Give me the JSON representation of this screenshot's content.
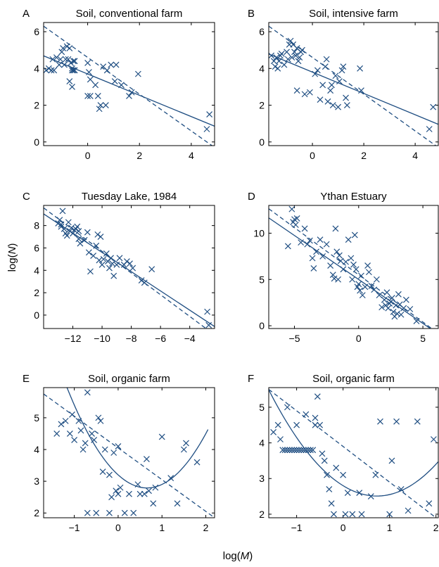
{
  "figure": {
    "xlabel_prefix": "log(",
    "xlabel_var": "M",
    "xlabel_suffix": ")",
    "ylabel_prefix": "log(",
    "ylabel_var": "N",
    "ylabel_suffix": ")",
    "series_color": "#1f4e82"
  },
  "chart_data": [
    {
      "type": "scatter",
      "letter": "A",
      "title": "Soil, conventional farm",
      "xlim": [
        -1.7,
        4.9
      ],
      "ylim": [
        -0.2,
        6.5
      ],
      "xticks": [
        0,
        2,
        4
      ],
      "xtick_labels": [
        "0",
        "2",
        "4"
      ],
      "yticks": [
        0,
        2,
        4,
        6
      ],
      "ytick_labels": [
        "0",
        "2",
        "4",
        "6"
      ],
      "fit_solid": {
        "kind": "linear",
        "slope": -0.58,
        "intercept": 3.7
      },
      "fit_dashed": {
        "kind": "linear",
        "slope": -1.0,
        "intercept": 4.6
      },
      "points": [
        [
          -1.6,
          3.9
        ],
        [
          -1.5,
          4.0
        ],
        [
          -1.4,
          3.9
        ],
        [
          -1.35,
          4.5
        ],
        [
          -1.3,
          3.9
        ],
        [
          -1.2,
          4.6
        ],
        [
          -1.1,
          4.2
        ],
        [
          -1.05,
          4.5
        ],
        [
          -1.0,
          4.9
        ],
        [
          -0.95,
          5.1
        ],
        [
          -0.9,
          4.2
        ],
        [
          -0.85,
          4.5
        ],
        [
          -0.8,
          5.2
        ],
        [
          -0.75,
          4.5
        ],
        [
          -0.7,
          5.1
        ],
        [
          -0.65,
          4.3
        ],
        [
          -0.6,
          4.0
        ],
        [
          -0.6,
          3.9
        ],
        [
          -0.55,
          3.9
        ],
        [
          -0.55,
          4.4
        ],
        [
          -0.5,
          4.4
        ],
        [
          -0.5,
          3.9
        ],
        [
          -0.7,
          3.3
        ],
        [
          -0.6,
          3.0
        ],
        [
          0.0,
          4.3
        ],
        [
          0.05,
          3.8
        ],
        [
          0.0,
          2.5
        ],
        [
          0.1,
          2.5
        ],
        [
          0.1,
          3.4
        ],
        [
          0.3,
          3.1
        ],
        [
          0.4,
          2.5
        ],
        [
          0.5,
          2.0
        ],
        [
          0.45,
          1.8
        ],
        [
          0.6,
          4.1
        ],
        [
          0.7,
          2.0
        ],
        [
          0.75,
          3.9
        ],
        [
          0.9,
          4.2
        ],
        [
          1.05,
          3.3
        ],
        [
          1.1,
          4.2
        ],
        [
          1.3,
          3.1
        ],
        [
          1.6,
          2.5
        ],
        [
          1.7,
          2.7
        ],
        [
          1.95,
          3.7
        ],
        [
          4.7,
          1.5
        ],
        [
          4.6,
          0.7
        ]
      ]
    },
    {
      "type": "scatter",
      "letter": "B",
      "title": "Soil, intensive farm",
      "xlim": [
        -1.7,
        4.9
      ],
      "ylim": [
        -0.2,
        6.5
      ],
      "xticks": [
        0,
        2,
        4
      ],
      "xtick_labels": [
        "0",
        "2",
        "4"
      ],
      "yticks": [
        0,
        2,
        4,
        6
      ],
      "ytick_labels": [
        "0",
        "2",
        "4",
        "6"
      ],
      "fit_solid": {
        "kind": "linear",
        "slope": -0.58,
        "intercept": 3.8
      },
      "fit_dashed": {
        "kind": "linear",
        "slope": -1.0,
        "intercept": 4.6
      },
      "points": [
        [
          -1.6,
          4.7
        ],
        [
          -1.5,
          4.4
        ],
        [
          -1.45,
          4.1
        ],
        [
          -1.4,
          4.6
        ],
        [
          -1.35,
          4.0
        ],
        [
          -1.3,
          4.4
        ],
        [
          -1.25,
          4.7
        ],
        [
          -1.2,
          4.8
        ],
        [
          -1.1,
          4.2
        ],
        [
          -1.0,
          4.9
        ],
        [
          -0.95,
          4.5
        ],
        [
          -0.9,
          5.3
        ],
        [
          -0.85,
          5.5
        ],
        [
          -0.8,
          4.6
        ],
        [
          -0.75,
          5.3
        ],
        [
          -0.7,
          4.9
        ],
        [
          -0.65,
          4.7
        ],
        [
          -0.6,
          5.1
        ],
        [
          -0.55,
          4.4
        ],
        [
          -0.5,
          4.6
        ],
        [
          -0.45,
          4.9
        ],
        [
          -0.4,
          5.0
        ],
        [
          -0.6,
          2.8
        ],
        [
          -0.3,
          2.6
        ],
        [
          -0.1,
          2.7
        ],
        [
          0.1,
          3.7
        ],
        [
          0.2,
          3.9
        ],
        [
          0.3,
          2.3
        ],
        [
          0.4,
          3.1
        ],
        [
          0.5,
          4.1
        ],
        [
          0.55,
          4.5
        ],
        [
          0.6,
          2.2
        ],
        [
          0.7,
          2.8
        ],
        [
          0.75,
          3.1
        ],
        [
          0.8,
          2.0
        ],
        [
          0.9,
          3.6
        ],
        [
          1.0,
          1.9
        ],
        [
          1.05,
          3.3
        ],
        [
          1.15,
          3.9
        ],
        [
          1.2,
          4.1
        ],
        [
          1.3,
          2.4
        ],
        [
          1.35,
          2.0
        ],
        [
          1.85,
          4.0
        ],
        [
          1.9,
          2.8
        ],
        [
          4.7,
          1.9
        ],
        [
          4.55,
          0.7
        ]
      ]
    },
    {
      "type": "scatter",
      "letter": "C",
      "title": "Tuesday Lake, 1984",
      "xlim": [
        -14,
        -2.3
      ],
      "ylim": [
        -1.2,
        9.8
      ],
      "xticks": [
        -12,
        -10,
        -8,
        -6,
        -4
      ],
      "xtick_labels": [
        "−12",
        "−10",
        "−8",
        "−6",
        "−4"
      ],
      "yticks": [
        0,
        2,
        4,
        6,
        8
      ],
      "ytick_labels": [
        "0",
        "2",
        "4",
        "6",
        "8"
      ],
      "fit_solid": {
        "kind": "linear",
        "slope": -0.86,
        "intercept": -3.0
      },
      "fit_dashed": {
        "kind": "linear",
        "slope": -0.97,
        "intercept": -4.0
      },
      "points": [
        [
          -13.0,
          8.2
        ],
        [
          -12.9,
          8.5
        ],
        [
          -12.8,
          7.9
        ],
        [
          -12.8,
          8.1
        ],
        [
          -12.7,
          9.3
        ],
        [
          -12.6,
          7.7
        ],
        [
          -12.5,
          7.3
        ],
        [
          -12.4,
          7.1
        ],
        [
          -12.3,
          8.3
        ],
        [
          -12.2,
          7.5
        ],
        [
          -12.1,
          7.8
        ],
        [
          -12.0,
          7.3
        ],
        [
          -11.9,
          7.6
        ],
        [
          -11.8,
          7.7
        ],
        [
          -11.7,
          7.9
        ],
        [
          -11.6,
          7.5
        ],
        [
          -11.6,
          6.8
        ],
        [
          -11.5,
          6.4
        ],
        [
          -11.2,
          6.7
        ],
        [
          -11.0,
          7.4
        ],
        [
          -10.9,
          5.6
        ],
        [
          -10.8,
          3.9
        ],
        [
          -10.6,
          5.3
        ],
        [
          -10.4,
          6.2
        ],
        [
          -10.3,
          7.2
        ],
        [
          -10.2,
          4.9
        ],
        [
          -10.1,
          7.0
        ],
        [
          -10.0,
          4.5
        ],
        [
          -9.9,
          5.0
        ],
        [
          -9.7,
          5.5
        ],
        [
          -9.6,
          4.8
        ],
        [
          -9.5,
          4.2
        ],
        [
          -9.4,
          5.1
        ],
        [
          -9.3,
          4.6
        ],
        [
          -9.2,
          3.5
        ],
        [
          -9.0,
          4.5
        ],
        [
          -8.8,
          5.1
        ],
        [
          -8.5,
          4.5
        ],
        [
          -8.3,
          4.8
        ],
        [
          -8.1,
          4.6
        ],
        [
          -7.9,
          4.2
        ],
        [
          -7.3,
          3.1
        ],
        [
          -7.1,
          2.9
        ],
        [
          -6.6,
          4.1
        ],
        [
          -2.8,
          0.3
        ],
        [
          -2.7,
          -0.9
        ]
      ]
    },
    {
      "type": "scatter",
      "letter": "D",
      "title": "Ythan Estuary",
      "xlim": [
        -7,
        6.2
      ],
      "ylim": [
        -0.3,
        13
      ],
      "xticks": [
        -5,
        0,
        5
      ],
      "xtick_labels": [
        "−5",
        "0",
        "5"
      ],
      "yticks": [
        0,
        5,
        10
      ],
      "ytick_labels": [
        "0",
        "5",
        "10"
      ],
      "fit_solid": {
        "kind": "linear",
        "slope": -0.95,
        "intercept": 5.0
      },
      "fit_dashed": {
        "kind": "linear",
        "slope": -1.02,
        "intercept": 5.5
      },
      "points": [
        [
          -5.2,
          12.6
        ],
        [
          -5.1,
          11.2
        ],
        [
          -5.0,
          11.5
        ],
        [
          -4.9,
          10.9
        ],
        [
          -4.8,
          11.6
        ],
        [
          -5.5,
          8.6
        ],
        [
          -4.5,
          9.0
        ],
        [
          -4.2,
          10.5
        ],
        [
          -4.0,
          8.8
        ],
        [
          -3.8,
          9.2
        ],
        [
          -3.6,
          7.3
        ],
        [
          -3.5,
          6.2
        ],
        [
          -3.3,
          8.0
        ],
        [
          -3.0,
          9.3
        ],
        [
          -2.8,
          7.5
        ],
        [
          -2.5,
          8.8
        ],
        [
          -2.2,
          6.5
        ],
        [
          -2.0,
          5.5
        ],
        [
          -1.9,
          5.1
        ],
        [
          -1.8,
          10.5
        ],
        [
          -1.7,
          8.0
        ],
        [
          -1.6,
          5.0
        ],
        [
          -1.5,
          7.6
        ],
        [
          -1.4,
          7.0
        ],
        [
          -1.2,
          6.1
        ],
        [
          -1.0,
          6.9
        ],
        [
          -0.8,
          9.3
        ],
        [
          -0.6,
          7.3
        ],
        [
          -0.5,
          5.0
        ],
        [
          -0.4,
          6.6
        ],
        [
          -0.3,
          9.8
        ],
        [
          -0.2,
          6.1
        ],
        [
          -0.1,
          4.2
        ],
        [
          0.0,
          4.5
        ],
        [
          0.1,
          3.8
        ],
        [
          0.2,
          5.4
        ],
        [
          0.3,
          3.3
        ],
        [
          0.5,
          4.2
        ],
        [
          0.7,
          6.5
        ],
        [
          0.8,
          5.8
        ],
        [
          1.0,
          4.3
        ],
        [
          1.2,
          3.9
        ],
        [
          1.4,
          5.0
        ],
        [
          1.6,
          3.3
        ],
        [
          1.8,
          2.0
        ],
        [
          2.0,
          2.8
        ],
        [
          2.1,
          2.2
        ],
        [
          2.2,
          3.6
        ],
        [
          2.3,
          1.9
        ],
        [
          2.4,
          2.4
        ],
        [
          2.5,
          2.6
        ],
        [
          2.6,
          3.0
        ],
        [
          2.7,
          1.5
        ],
        [
          2.8,
          1.0
        ],
        [
          2.9,
          2.2
        ],
        [
          3.0,
          1.3
        ],
        [
          3.1,
          3.4
        ],
        [
          3.2,
          2.3
        ],
        [
          3.3,
          1.2
        ],
        [
          3.5,
          1.9
        ],
        [
          3.7,
          2.8
        ],
        [
          4.0,
          1.8
        ],
        [
          4.5,
          0.5
        ]
      ]
    },
    {
      "type": "scatter",
      "letter": "E",
      "title": "Soil, organic farm",
      "xlim": [
        -1.7,
        2.2
      ],
      "ylim": [
        1.85,
        5.95
      ],
      "xticks": [
        -1,
        0,
        1,
        2
      ],
      "xtick_labels": [
        "−1",
        "0",
        "1",
        "2"
      ],
      "yticks": [
        2,
        3,
        4,
        5
      ],
      "ytick_labels": [
        "2",
        "3",
        "4",
        "5"
      ],
      "fit_solid": {
        "kind": "quadratic",
        "a": 0.95,
        "b": -1.25,
        "c": 3.2,
        "x_range": [
          -1.65,
          2.05
        ]
      },
      "fit_dashed": {
        "kind": "linear",
        "slope": -1.0,
        "intercept": 4.05
      },
      "points": [
        [
          -1.4,
          4.5
        ],
        [
          -1.3,
          4.8
        ],
        [
          -1.2,
          4.9
        ],
        [
          -1.1,
          4.5
        ],
        [
          -1.05,
          5.1
        ],
        [
          -1.0,
          4.3
        ],
        [
          -0.9,
          4.9
        ],
        [
          -0.85,
          4.6
        ],
        [
          -0.8,
          4.0
        ],
        [
          -0.75,
          4.2
        ],
        [
          -0.7,
          5.8
        ],
        [
          -0.6,
          4.5
        ],
        [
          -0.55,
          4.3
        ],
        [
          -0.45,
          5.0
        ],
        [
          -0.4,
          4.9
        ],
        [
          -0.35,
          3.3
        ],
        [
          -0.3,
          4.0
        ],
        [
          -0.2,
          3.2
        ],
        [
          -0.15,
          2.5
        ],
        [
          -0.1,
          3.9
        ],
        [
          -0.05,
          2.7
        ],
        [
          0.0,
          4.1
        ],
        [
          0.0,
          2.6
        ],
        [
          0.05,
          2.8
        ],
        [
          0.15,
          2.0
        ],
        [
          0.25,
          2.6
        ],
        [
          0.35,
          2.0
        ],
        [
          0.45,
          2.9
        ],
        [
          0.5,
          2.6
        ],
        [
          0.6,
          2.6
        ],
        [
          0.65,
          3.7
        ],
        [
          0.7,
          2.7
        ],
        [
          0.8,
          2.3
        ],
        [
          0.85,
          2.8
        ],
        [
          1.0,
          4.4
        ],
        [
          1.2,
          3.1
        ],
        [
          1.35,
          2.3
        ],
        [
          1.5,
          4.0
        ],
        [
          1.55,
          4.2
        ],
        [
          1.8,
          3.6
        ],
        [
          -0.7,
          2.0
        ],
        [
          -0.5,
          2.0
        ],
        [
          -0.2,
          2.0
        ]
      ]
    },
    {
      "type": "scatter",
      "letter": "F",
      "title": "Soil, organic farm",
      "xlim": [
        -1.6,
        2.05
      ],
      "ylim": [
        1.9,
        5.55
      ],
      "xticks": [
        -1,
        0,
        1,
        2
      ],
      "xtick_labels": [
        "−1",
        "0",
        "1",
        "2"
      ],
      "yticks": [
        2,
        3,
        4,
        5
      ],
      "ytick_labels": [
        "2",
        "3",
        "4",
        "5"
      ],
      "fit_solid": {
        "kind": "quadratic",
        "a": 0.55,
        "b": -0.8,
        "c": 2.8,
        "x_range": [
          -1.6,
          2.05
        ]
      },
      "fit_dashed": {
        "kind": "linear",
        "slope": -1.0,
        "intercept": 3.9
      },
      "points": [
        [
          -1.5,
          4.3
        ],
        [
          -1.4,
          4.5
        ],
        [
          -1.35,
          4.1
        ],
        [
          -1.3,
          3.8
        ],
        [
          -1.25,
          3.8
        ],
        [
          -1.2,
          3.8
        ],
        [
          -1.15,
          3.8
        ],
        [
          -1.1,
          3.8
        ],
        [
          -1.05,
          3.8
        ],
        [
          -1.0,
          3.8
        ],
        [
          -0.95,
          3.8
        ],
        [
          -0.9,
          3.8
        ],
        [
          -0.85,
          3.8
        ],
        [
          -0.8,
          3.8
        ],
        [
          -0.75,
          3.8
        ],
        [
          -0.7,
          3.8
        ],
        [
          -0.65,
          3.8
        ],
        [
          -0.6,
          4.7
        ],
        [
          -0.55,
          5.3
        ],
        [
          -0.5,
          4.5
        ],
        [
          -0.45,
          3.7
        ],
        [
          -0.4,
          3.5
        ],
        [
          -0.35,
          3.1
        ],
        [
          -0.3,
          2.7
        ],
        [
          -0.25,
          2.3
        ],
        [
          -0.2,
          2.0
        ],
        [
          -0.15,
          3.3
        ],
        [
          0.0,
          3.1
        ],
        [
          0.05,
          2.0
        ],
        [
          0.1,
          2.6
        ],
        [
          0.2,
          2.0
        ],
        [
          0.35,
          2.6
        ],
        [
          0.4,
          2.0
        ],
        [
          0.6,
          2.5
        ],
        [
          0.7,
          3.1
        ],
        [
          0.8,
          4.6
        ],
        [
          1.0,
          2.0
        ],
        [
          1.05,
          3.5
        ],
        [
          1.15,
          4.6
        ],
        [
          1.25,
          2.7
        ],
        [
          1.4,
          2.1
        ],
        [
          1.6,
          4.6
        ],
        [
          1.85,
          2.3
        ],
        [
          1.95,
          4.1
        ],
        [
          -1.2,
          5.0
        ],
        [
          -0.8,
          4.8
        ],
        [
          -1.0,
          4.5
        ],
        [
          -0.6,
          4.5
        ]
      ]
    }
  ]
}
